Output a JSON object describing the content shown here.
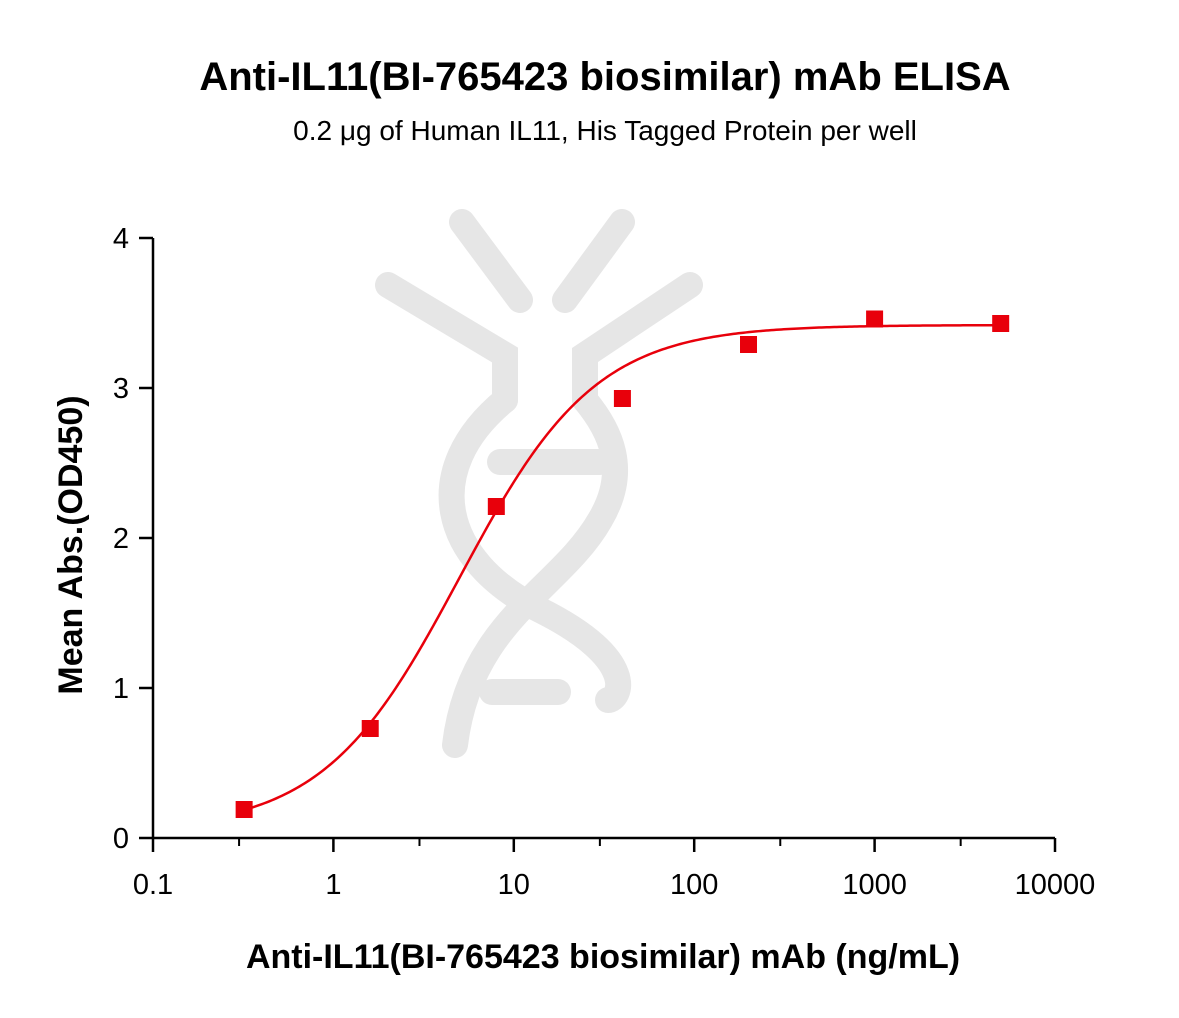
{
  "chart_data": {
    "type": "scatter",
    "title": "Anti-IL11(BI-765423 biosimilar) mAb ELISA",
    "subtitle": "0.2 μg of Human IL11, His Tagged Protein  per well",
    "xlabel": "Anti-IL11(BI-765423 biosimilar) mAb (ng/mL)",
    "ylabel": "Mean Abs.(OD450)",
    "x_scale": "log",
    "xlim": [
      0.1,
      10000
    ],
    "ylim": [
      0,
      4
    ],
    "x_ticks": [
      {
        "value": 0.1,
        "label": "0.1"
      },
      {
        "value": 1,
        "label": "1"
      },
      {
        "value": 10,
        "label": "10"
      },
      {
        "value": 100,
        "label": "100"
      },
      {
        "value": 1000,
        "label": "1000"
      },
      {
        "value": 10000,
        "label": "10000"
      }
    ],
    "y_ticks": [
      {
        "value": 0,
        "label": "0"
      },
      {
        "value": 1,
        "label": "1"
      },
      {
        "value": 2,
        "label": "2"
      },
      {
        "value": 3,
        "label": "3"
      },
      {
        "value": 4,
        "label": "4"
      }
    ],
    "grid": false,
    "legend": "none",
    "series": [
      {
        "marker": "square",
        "color": "#e8000b",
        "x": [
          0.32,
          1.6,
          8,
          40,
          200,
          1000,
          5000
        ],
        "y": [
          0.19,
          0.73,
          2.21,
          2.93,
          3.29,
          3.46,
          3.43
        ]
      }
    ],
    "fit_curve": {
      "type": "4PL",
      "color": "#e8000b",
      "bottom": 0.05,
      "top": 3.42,
      "ec50": 5.0,
      "hill": 1.15,
      "x_range": [
        0.32,
        5000
      ]
    }
  },
  "watermark": {
    "icon": "dna-helix-logo-icon",
    "color": "#e6e6e6"
  }
}
